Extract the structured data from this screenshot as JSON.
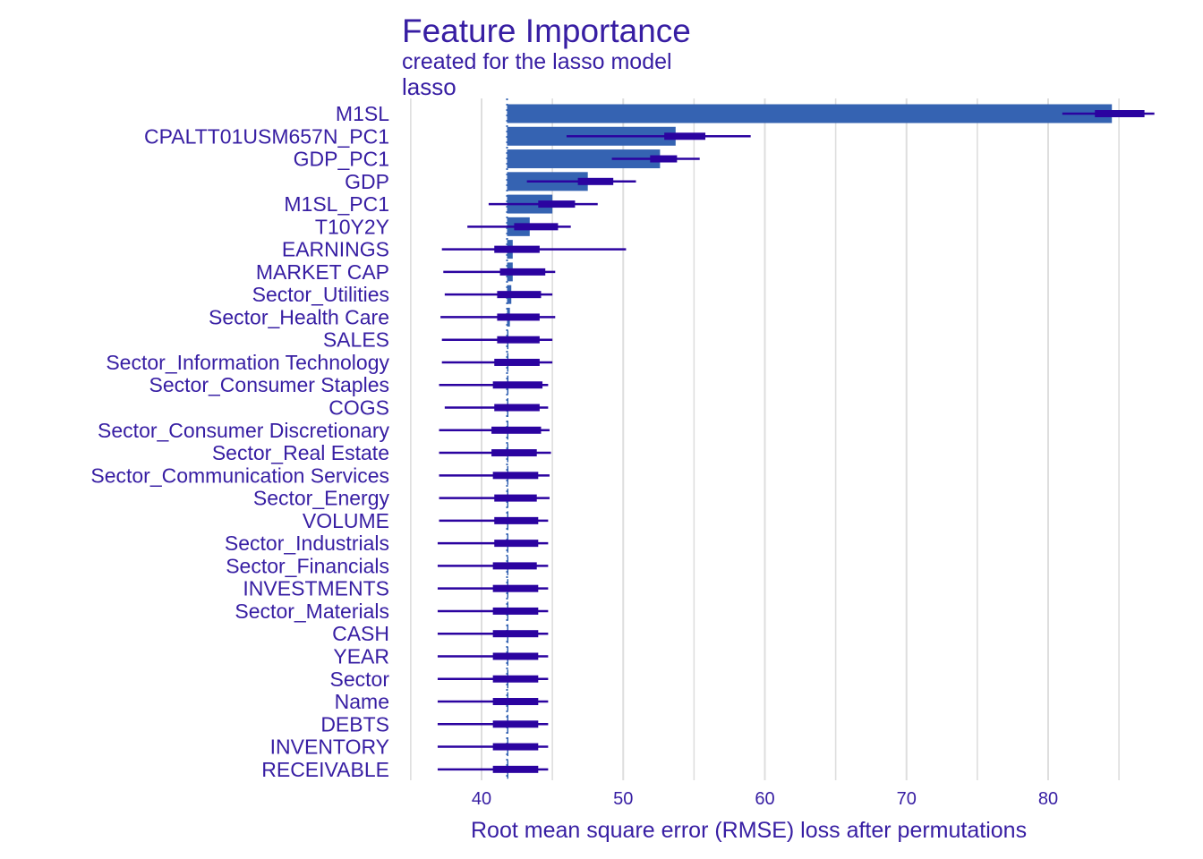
{
  "chart_data": {
    "type": "bar",
    "title": "Feature Importance",
    "subtitle": "created for the lasso model",
    "panel_label": "lasso",
    "xlabel": "Root mean square error (RMSE) loss after permutations",
    "ylabel": "",
    "baseline": 41.8,
    "xlim": [
      35,
      87
    ],
    "xticks": [
      40,
      50,
      60,
      70,
      80
    ],
    "grid": "vertical",
    "legend": "none",
    "colors": {
      "bar": "#3563b2",
      "boxplot": "#2b03a0",
      "text": "#371ea3",
      "grid": "#dedede",
      "baseline": "#3563b2"
    },
    "features": [
      "M1SL",
      "CPALTT01USM657N_PC1",
      "GDP_PC1",
      "GDP",
      "M1SL_PC1",
      "T10Y2Y",
      "EARNINGS",
      "MARKET CAP",
      "Sector_Utilities",
      "Sector_Health Care",
      "SALES",
      "Sector_Information Technology",
      "Sector_Consumer Staples",
      "COGS",
      "Sector_Consumer Discretionary",
      "Sector_Real Estate",
      "Sector_Communication Services",
      "Sector_Energy",
      "VOLUME",
      "Sector_Industrials",
      "Sector_Financials",
      "INVESTMENTS",
      "Sector_Materials",
      "CASH",
      "YEAR",
      "Sector",
      "Name",
      "DEBTS",
      "INVENTORY",
      "RECEIVABLE"
    ],
    "values": [
      84.5,
      53.7,
      52.6,
      47.5,
      45.0,
      43.4,
      42.2,
      42.2,
      42.1,
      42.0,
      41.9,
      41.9,
      41.9,
      41.8,
      41.8,
      41.8,
      41.8,
      41.8,
      41.8,
      41.8,
      41.8,
      41.8,
      41.8,
      41.8,
      41.8,
      41.8,
      41.8,
      41.8,
      41.8,
      41.8
    ],
    "boxplots": [
      {
        "min": 81.0,
        "q1": 83.3,
        "q3": 86.8,
        "max": 87.5
      },
      {
        "min": 46.0,
        "q1": 52.9,
        "q3": 55.8,
        "max": 59.0
      },
      {
        "min": 49.2,
        "q1": 51.9,
        "q3": 53.8,
        "max": 55.4
      },
      {
        "min": 43.2,
        "q1": 46.8,
        "q3": 49.3,
        "max": 50.9
      },
      {
        "min": 40.5,
        "q1": 44.0,
        "q3": 46.6,
        "max": 48.2
      },
      {
        "min": 39.0,
        "q1": 42.3,
        "q3": 45.4,
        "max": 46.3
      },
      {
        "min": 37.2,
        "q1": 40.9,
        "q3": 44.1,
        "max": 50.2
      },
      {
        "min": 37.3,
        "q1": 41.3,
        "q3": 44.5,
        "max": 45.2
      },
      {
        "min": 37.4,
        "q1": 41.1,
        "q3": 44.2,
        "max": 45.0
      },
      {
        "min": 37.1,
        "q1": 41.1,
        "q3": 44.1,
        "max": 45.2
      },
      {
        "min": 37.2,
        "q1": 41.1,
        "q3": 44.1,
        "max": 45.0
      },
      {
        "min": 37.2,
        "q1": 40.9,
        "q3": 44.1,
        "max": 45.0
      },
      {
        "min": 37.0,
        "q1": 40.8,
        "q3": 44.3,
        "max": 44.7
      },
      {
        "min": 37.4,
        "q1": 40.9,
        "q3": 44.1,
        "max": 44.7
      },
      {
        "min": 37.0,
        "q1": 40.7,
        "q3": 44.2,
        "max": 44.8
      },
      {
        "min": 37.0,
        "q1": 40.7,
        "q3": 43.9,
        "max": 44.9
      },
      {
        "min": 37.0,
        "q1": 40.8,
        "q3": 44.0,
        "max": 44.8
      },
      {
        "min": 37.0,
        "q1": 40.9,
        "q3": 43.9,
        "max": 44.8
      },
      {
        "min": 37.0,
        "q1": 40.9,
        "q3": 44.0,
        "max": 44.7
      },
      {
        "min": 36.9,
        "q1": 40.9,
        "q3": 44.0,
        "max": 44.7
      },
      {
        "min": 36.9,
        "q1": 40.8,
        "q3": 43.9,
        "max": 44.7
      },
      {
        "min": 36.9,
        "q1": 40.8,
        "q3": 44.0,
        "max": 44.7
      },
      {
        "min": 36.9,
        "q1": 40.8,
        "q3": 44.0,
        "max": 44.7
      },
      {
        "min": 36.9,
        "q1": 40.8,
        "q3": 44.0,
        "max": 44.7
      },
      {
        "min": 36.9,
        "q1": 40.8,
        "q3": 44.0,
        "max": 44.7
      },
      {
        "min": 36.9,
        "q1": 40.8,
        "q3": 44.0,
        "max": 44.7
      },
      {
        "min": 36.9,
        "q1": 40.8,
        "q3": 44.0,
        "max": 44.7
      },
      {
        "min": 36.9,
        "q1": 40.8,
        "q3": 44.0,
        "max": 44.7
      },
      {
        "min": 36.9,
        "q1": 40.8,
        "q3": 44.0,
        "max": 44.7
      },
      {
        "min": 36.9,
        "q1": 40.8,
        "q3": 44.0,
        "max": 44.7
      }
    ]
  }
}
